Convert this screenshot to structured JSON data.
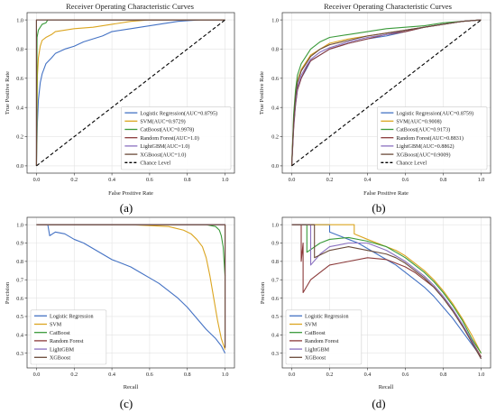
{
  "panel_labels": [
    "(a)",
    "(b)",
    "(c)",
    "(d)"
  ],
  "colors": {
    "Logistic Regression": "#4472c4",
    "SVM": "#dba520",
    "CatBoost": "#3a9a3a",
    "Random Forest": "#8b3a3a",
    "LightGBM": "#8a70c0",
    "XGBoost": "#6b4a3a",
    "Chance Level": "#000000"
  },
  "chart_data": [
    {
      "type": "line",
      "panel": "(a)",
      "title": "Receiver Operating Characteristic Curves",
      "xlabel": "False Positive Rate",
      "ylabel": "True Positive Rate",
      "xlim": [
        -0.05,
        1.05
      ],
      "ylim": [
        -0.05,
        1.05
      ],
      "xticks": [
        0.0,
        0.2,
        0.4,
        0.6,
        0.8,
        1.0
      ],
      "yticks": [
        0.0,
        0.2,
        0.4,
        0.6,
        0.8,
        1.0
      ],
      "xtick_labels": [
        "0.0",
        "0.2",
        "0.4",
        "0.6",
        "0.8",
        "1.0"
      ],
      "ytick_labels": [
        "0.0",
        "0.2",
        "0.4",
        "0.6",
        "0.8",
        "1.0"
      ],
      "legend_position": "lower-right",
      "series": [
        {
          "name": "Logistic Regression(AUC=0.8795)",
          "color": "#4472c4",
          "x": [
            0,
            0.005,
            0.01,
            0.02,
            0.03,
            0.05,
            0.08,
            0.1,
            0.15,
            0.2,
            0.25,
            0.3,
            0.35,
            0.4,
            0.5,
            0.6,
            0.7,
            0.75,
            0.8,
            0.87,
            0.9,
            1.0
          ],
          "y": [
            0,
            0.3,
            0.45,
            0.57,
            0.63,
            0.7,
            0.74,
            0.77,
            0.8,
            0.82,
            0.85,
            0.87,
            0.89,
            0.92,
            0.94,
            0.96,
            0.98,
            0.99,
            0.995,
            1.0,
            1.0,
            1.0
          ]
        },
        {
          "name": "SVM(AUC=0.9729)",
          "color": "#dba520",
          "x": [
            0,
            0.005,
            0.01,
            0.02,
            0.03,
            0.05,
            0.08,
            0.1,
            0.2,
            0.3,
            0.4,
            0.5,
            0.6,
            0.8,
            1.0
          ],
          "y": [
            0,
            0.62,
            0.74,
            0.82,
            0.86,
            0.88,
            0.9,
            0.92,
            0.94,
            0.95,
            0.97,
            0.99,
            1.0,
            1.0,
            1.0
          ]
        },
        {
          "name": "CatBoost(AUC=0.9978)",
          "color": "#3a9a3a",
          "x": [
            0,
            0.003,
            0.01,
            0.02,
            0.03,
            0.05,
            0.06,
            0.1,
            0.3,
            1.0
          ],
          "y": [
            0,
            0.88,
            0.93,
            0.95,
            0.97,
            0.98,
            1.0,
            1.0,
            1.0,
            1.0
          ]
        },
        {
          "name": "Random Forest(AUC=1.0)",
          "color": "#8b3a3a",
          "x": [
            0,
            0,
            1.0
          ],
          "y": [
            0,
            1.0,
            1.0
          ]
        },
        {
          "name": "LightGBM(AUC=1.0)",
          "color": "#8a70c0",
          "x": [
            0,
            0,
            1.0
          ],
          "y": [
            0,
            1.0,
            1.0
          ]
        },
        {
          "name": "XGBoost(AUC=1.0)",
          "color": "#6b4a3a",
          "x": [
            0,
            0,
            1.0
          ],
          "y": [
            0,
            1.0,
            1.0
          ]
        },
        {
          "name": "Chance Level",
          "color": "#000000",
          "dashed": true,
          "x": [
            0,
            1
          ],
          "y": [
            0,
            1
          ]
        }
      ]
    },
    {
      "type": "line",
      "panel": "(b)",
      "title": "Receiver Operating Characteristic Curves",
      "xlabel": "False Positive Rate",
      "ylabel": "True Positive Rate",
      "xlim": [
        -0.05,
        1.05
      ],
      "ylim": [
        -0.05,
        1.05
      ],
      "xticks": [
        0.0,
        0.2,
        0.4,
        0.6,
        0.8,
        1.0
      ],
      "yticks": [
        0.0,
        0.2,
        0.4,
        0.6,
        0.8,
        1.0
      ],
      "xtick_labels": [
        "0.0",
        "0.2",
        "0.4",
        "0.6",
        "0.8",
        "1.0"
      ],
      "ytick_labels": [
        "0.0",
        "0.2",
        "0.4",
        "0.6",
        "0.8",
        "1.0"
      ],
      "legend_position": "lower-right",
      "series": [
        {
          "name": "Logistic Regression(AUC=0.8759)",
          "color": "#4472c4",
          "x": [
            0,
            0.01,
            0.02,
            0.03,
            0.05,
            0.08,
            0.1,
            0.15,
            0.2,
            0.3,
            0.4,
            0.5,
            0.6,
            0.7,
            0.8,
            0.9,
            1.0
          ],
          "y": [
            0,
            0.28,
            0.42,
            0.52,
            0.6,
            0.67,
            0.72,
            0.76,
            0.8,
            0.84,
            0.87,
            0.89,
            0.92,
            0.95,
            0.97,
            0.99,
            1.0
          ]
        },
        {
          "name": "SVM(AUC=0.9008)",
          "color": "#dba520",
          "x": [
            0,
            0.01,
            0.02,
            0.03,
            0.05,
            0.08,
            0.1,
            0.15,
            0.2,
            0.3,
            0.4,
            0.5,
            0.6,
            0.7,
            0.8,
            0.9,
            1.0
          ],
          "y": [
            0,
            0.32,
            0.48,
            0.58,
            0.66,
            0.72,
            0.76,
            0.8,
            0.84,
            0.87,
            0.89,
            0.91,
            0.93,
            0.95,
            0.97,
            0.99,
            1.0
          ]
        },
        {
          "name": "CatBoost(AUC=0.9173)",
          "color": "#3a9a3a",
          "x": [
            0,
            0.01,
            0.02,
            0.03,
            0.05,
            0.08,
            0.1,
            0.15,
            0.2,
            0.3,
            0.4,
            0.5,
            0.6,
            0.7,
            0.8,
            0.9,
            1.0
          ],
          "y": [
            0,
            0.35,
            0.52,
            0.62,
            0.7,
            0.76,
            0.8,
            0.85,
            0.88,
            0.9,
            0.92,
            0.94,
            0.95,
            0.96,
            0.98,
            0.99,
            1.0
          ]
        },
        {
          "name": "Random Forest(AUC=0.8831)",
          "color": "#8b3a3a",
          "x": [
            0,
            0.01,
            0.02,
            0.03,
            0.05,
            0.08,
            0.1,
            0.15,
            0.2,
            0.3,
            0.4,
            0.5,
            0.6,
            0.7,
            0.8,
            0.9,
            1.0
          ],
          "y": [
            0,
            0.25,
            0.42,
            0.52,
            0.6,
            0.68,
            0.72,
            0.76,
            0.8,
            0.84,
            0.87,
            0.9,
            0.92,
            0.95,
            0.97,
            0.99,
            1.0
          ]
        },
        {
          "name": "LightGBM(AUC=0.8862)",
          "color": "#8a70c0",
          "x": [
            0,
            0.01,
            0.02,
            0.03,
            0.05,
            0.08,
            0.1,
            0.15,
            0.2,
            0.3,
            0.4,
            0.5,
            0.6,
            0.7,
            0.8,
            0.9,
            1.0
          ],
          "y": [
            0,
            0.27,
            0.44,
            0.54,
            0.62,
            0.69,
            0.73,
            0.78,
            0.81,
            0.85,
            0.88,
            0.9,
            0.93,
            0.95,
            0.97,
            0.99,
            1.0
          ]
        },
        {
          "name": "XGBoost(AUC=0.9009)",
          "color": "#6b4a3a",
          "x": [
            0,
            0.01,
            0.02,
            0.03,
            0.05,
            0.08,
            0.1,
            0.15,
            0.2,
            0.3,
            0.4,
            0.5,
            0.6,
            0.7,
            0.8,
            0.9,
            1.0
          ],
          "y": [
            0,
            0.3,
            0.47,
            0.57,
            0.65,
            0.71,
            0.75,
            0.8,
            0.83,
            0.86,
            0.89,
            0.91,
            0.93,
            0.95,
            0.97,
            0.99,
            1.0
          ]
        },
        {
          "name": "Chance Level",
          "color": "#000000",
          "dashed": true,
          "x": [
            0,
            1
          ],
          "y": [
            0,
            1
          ]
        }
      ]
    },
    {
      "type": "line",
      "panel": "(c)",
      "title": "",
      "xlabel": "Recall",
      "ylabel": "Precision",
      "xlim": [
        -0.05,
        1.05
      ],
      "ylim": [
        0.22,
        1.04
      ],
      "xticks": [
        0.0,
        0.2,
        0.4,
        0.6,
        0.8,
        1.0
      ],
      "yticks": [
        0.3,
        0.4,
        0.5,
        0.6,
        0.7,
        0.8,
        0.9,
        1.0
      ],
      "xtick_labels": [
        "0.0",
        "0.2",
        "0.4",
        "0.6",
        "0.8",
        "1.0"
      ],
      "ytick_labels": [
        "0.3",
        "0.4",
        "0.5",
        "0.6",
        "0.7",
        "0.8",
        "0.9",
        "1.0"
      ],
      "legend_position": "lower-left",
      "series": [
        {
          "name": "Logistic Regression",
          "color": "#4472c4",
          "x": [
            0.0,
            0.06,
            0.07,
            0.1,
            0.15,
            0.2,
            0.25,
            0.3,
            0.35,
            0.4,
            0.45,
            0.5,
            0.55,
            0.6,
            0.65,
            0.7,
            0.75,
            0.8,
            0.85,
            0.9,
            0.95,
            0.98,
            1.0
          ],
          "y": [
            1.0,
            1.0,
            0.94,
            0.96,
            0.95,
            0.92,
            0.9,
            0.87,
            0.84,
            0.81,
            0.79,
            0.77,
            0.74,
            0.71,
            0.68,
            0.64,
            0.6,
            0.55,
            0.49,
            0.43,
            0.38,
            0.34,
            0.3
          ]
        },
        {
          "name": "SVM",
          "color": "#dba520",
          "x": [
            0.0,
            0.5,
            0.7,
            0.78,
            0.82,
            0.85,
            0.88,
            0.9,
            0.92,
            0.94,
            0.96,
            0.98,
            1.0
          ],
          "y": [
            1.0,
            1.0,
            0.99,
            0.97,
            0.95,
            0.92,
            0.88,
            0.82,
            0.72,
            0.6,
            0.48,
            0.38,
            0.32
          ]
        },
        {
          "name": "CatBoost",
          "color": "#3a9a3a",
          "x": [
            0.0,
            0.9,
            0.95,
            0.97,
            0.98,
            0.99,
            1.0
          ],
          "y": [
            1.0,
            1.0,
            0.99,
            0.97,
            0.94,
            0.88,
            0.72
          ]
        },
        {
          "name": "Random Forest",
          "color": "#8b3a3a",
          "x": [
            0.0,
            1.0,
            1.0
          ],
          "y": [
            1.0,
            1.0,
            0.33
          ]
        },
        {
          "name": "LightGBM",
          "color": "#8a70c0",
          "x": [
            0.0,
            1.0,
            1.0
          ],
          "y": [
            1.0,
            1.0,
            0.33
          ]
        },
        {
          "name": "XGBoost",
          "color": "#6b4a3a",
          "x": [
            0.0,
            1.0,
            1.0
          ],
          "y": [
            1.0,
            1.0,
            0.33
          ]
        }
      ]
    },
    {
      "type": "line",
      "panel": "(d)",
      "title": "",
      "xlabel": "Recall",
      "ylabel": "Precision",
      "xlim": [
        -0.05,
        1.05
      ],
      "ylim": [
        0.22,
        1.04
      ],
      "xticks": [
        0.0,
        0.2,
        0.4,
        0.6,
        0.8,
        1.0
      ],
      "yticks": [
        0.3,
        0.4,
        0.5,
        0.6,
        0.7,
        0.8,
        0.9,
        1.0
      ],
      "xtick_labels": [
        "0.0",
        "0.2",
        "0.4",
        "0.6",
        "0.8",
        "1.0"
      ],
      "ytick_labels": [
        "0.3",
        "0.4",
        "0.5",
        "0.6",
        "0.7",
        "0.8",
        "0.9",
        "1.0"
      ],
      "legend_position": "lower-left",
      "series": [
        {
          "name": "Logistic Regression",
          "color": "#4472c4",
          "x": [
            0.0,
            0.2,
            0.2,
            0.25,
            0.3,
            0.35,
            0.4,
            0.45,
            0.5,
            0.55,
            0.6,
            0.65,
            0.7,
            0.75,
            0.8,
            0.85,
            0.9,
            0.95,
            1.0
          ],
          "y": [
            1.0,
            1.0,
            0.96,
            0.94,
            0.92,
            0.9,
            0.87,
            0.84,
            0.81,
            0.78,
            0.74,
            0.7,
            0.66,
            0.61,
            0.55,
            0.49,
            0.42,
            0.35,
            0.28
          ]
        },
        {
          "name": "SVM",
          "color": "#dba520",
          "x": [
            0.0,
            0.33,
            0.33,
            0.4,
            0.45,
            0.5,
            0.55,
            0.6,
            0.65,
            0.7,
            0.75,
            0.8,
            0.85,
            0.9,
            0.95,
            1.0
          ],
          "y": [
            1.0,
            1.0,
            0.95,
            0.92,
            0.9,
            0.88,
            0.86,
            0.83,
            0.79,
            0.75,
            0.7,
            0.64,
            0.57,
            0.49,
            0.4,
            0.3
          ]
        },
        {
          "name": "CatBoost",
          "color": "#3a9a3a",
          "x": [
            0.0,
            0.08,
            0.08,
            0.15,
            0.2,
            0.3,
            0.4,
            0.5,
            0.55,
            0.6,
            0.65,
            0.7,
            0.75,
            0.8,
            0.85,
            0.9,
            0.95,
            1.0
          ],
          "y": [
            1.0,
            1.0,
            0.85,
            0.9,
            0.92,
            0.93,
            0.91,
            0.88,
            0.85,
            0.82,
            0.78,
            0.74,
            0.69,
            0.63,
            0.56,
            0.48,
            0.38,
            0.3
          ]
        },
        {
          "name": "Random Forest",
          "color": "#8b3a3a",
          "x": [
            0.0,
            0.05,
            0.05,
            0.06,
            0.06,
            0.1,
            0.15,
            0.2,
            0.3,
            0.4,
            0.5,
            0.55,
            0.6,
            0.65,
            0.7,
            0.75,
            0.8,
            0.85,
            0.9,
            0.95,
            1.0
          ],
          "y": [
            1.0,
            1.0,
            0.8,
            0.9,
            0.63,
            0.7,
            0.74,
            0.78,
            0.8,
            0.82,
            0.81,
            0.79,
            0.77,
            0.74,
            0.7,
            0.66,
            0.6,
            0.53,
            0.45,
            0.37,
            0.28
          ]
        },
        {
          "name": "LightGBM",
          "color": "#8a70c0",
          "x": [
            0.0,
            0.1,
            0.1,
            0.15,
            0.2,
            0.3,
            0.4,
            0.5,
            0.55,
            0.6,
            0.65,
            0.7,
            0.75,
            0.8,
            0.85,
            0.9,
            0.95,
            1.0
          ],
          "y": [
            1.0,
            1.0,
            0.78,
            0.84,
            0.88,
            0.9,
            0.9,
            0.86,
            0.83,
            0.8,
            0.76,
            0.72,
            0.67,
            0.61,
            0.54,
            0.46,
            0.37,
            0.27
          ]
        },
        {
          "name": "XGBoost",
          "color": "#6b4a3a",
          "x": [
            0.0,
            0.12,
            0.12,
            0.2,
            0.3,
            0.4,
            0.5,
            0.55,
            0.6,
            0.65,
            0.7,
            0.75,
            0.8,
            0.85,
            0.9,
            0.95,
            1.0
          ],
          "y": [
            1.0,
            1.0,
            0.82,
            0.86,
            0.88,
            0.86,
            0.84,
            0.82,
            0.79,
            0.75,
            0.71,
            0.66,
            0.6,
            0.53,
            0.45,
            0.36,
            0.27
          ]
        }
      ]
    }
  ]
}
